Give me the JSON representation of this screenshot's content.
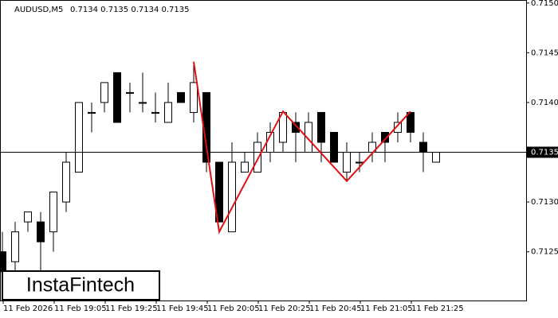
{
  "chart_data": {
    "type": "candlestick",
    "title": "AUDUSD,M5",
    "quote": "0.7134 0.7135 0.7134 0.7135",
    "logo": "InstaFintech",
    "categories": [
      "11 Feb 2026",
      null,
      null,
      null,
      "11 Feb 19:05",
      null,
      null,
      null,
      "11 Feb 19:25",
      null,
      null,
      null,
      "11 Feb 19:45",
      null,
      null,
      null,
      "11 Feb 20:05",
      null,
      null,
      null,
      "11 Feb 20:25",
      null,
      null,
      null,
      "11 Feb 20:45",
      null,
      null,
      null,
      "11 Feb 21:05",
      null,
      null,
      null,
      "11 Feb 21:25",
      null,
      null
    ],
    "open": [
      0.7125,
      0.7124,
      0.7128,
      0.7128,
      0.7127,
      0.713,
      0.7133,
      0.7139,
      0.714,
      0.7143,
      0.7141,
      0.714,
      0.7139,
      0.7138,
      0.7141,
      0.7139,
      0.7141,
      0.7134,
      0.7127,
      0.7133,
      0.7133,
      0.7135,
      0.7136,
      0.7138,
      0.7135,
      0.7139,
      0.7137,
      0.7133,
      0.7134,
      0.7135,
      0.7137,
      0.7137,
      0.7139,
      0.7136,
      0.7134
    ],
    "high": [
      0.7127,
      0.7128,
      0.7129,
      0.7129,
      0.7131,
      0.7135,
      0.714,
      0.714,
      0.7142,
      0.7143,
      0.7142,
      0.7143,
      0.7141,
      0.7142,
      0.7141,
      0.7144,
      0.7141,
      0.7134,
      0.7136,
      0.7135,
      0.7137,
      0.7138,
      0.7139,
      0.7139,
      0.7139,
      0.7139,
      0.7137,
      0.7136,
      0.7135,
      0.7137,
      0.7137,
      0.7139,
      0.7139,
      0.7137,
      0.7135
    ],
    "low": [
      0.7122,
      0.7123,
      0.7127,
      0.7122,
      0.7125,
      0.7129,
      0.7133,
      0.7137,
      0.7139,
      0.7138,
      0.7139,
      0.7139,
      0.7138,
      0.7138,
      0.714,
      0.7138,
      0.7133,
      0.7128,
      0.7127,
      0.7133,
      0.7133,
      0.7134,
      0.7135,
      0.7134,
      0.7135,
      0.7134,
      0.7134,
      0.7132,
      0.7133,
      0.7134,
      0.7134,
      0.7136,
      0.7136,
      0.7133,
      0.7134
    ],
    "close": [
      0.7123,
      0.7127,
      0.7129,
      0.7126,
      0.7131,
      0.7134,
      0.714,
      0.7139,
      0.7142,
      0.7138,
      0.7141,
      0.714,
      0.7139,
      0.714,
      0.714,
      0.7142,
      0.7134,
      0.7128,
      0.7134,
      0.7134,
      0.7136,
      0.7137,
      0.7139,
      0.7137,
      0.7138,
      0.7136,
      0.7134,
      0.7135,
      0.7134,
      0.7136,
      0.7136,
      0.7138,
      0.7137,
      0.7135,
      0.7135
    ],
    "pattern": {
      "color": "#e01010",
      "x": [
        15,
        17,
        22,
        27,
        32
      ],
      "values": [
        0.71441,
        0.7127,
        0.71391,
        0.71321,
        0.71391
      ]
    },
    "last_price": {
      "value": 0.7135,
      "label": "0.7135"
    },
    "ylim": [
      0.71201,
      0.71503
    ],
    "yticks": [
      0.7125,
      {
        "value": 0.713,
        "label": "0.7130"
      },
      {
        "value": 0.714,
        "label": "0.7140"
      },
      0.7145,
      {
        "value": 0.715,
        "label": "0.7150"
      }
    ]
  }
}
